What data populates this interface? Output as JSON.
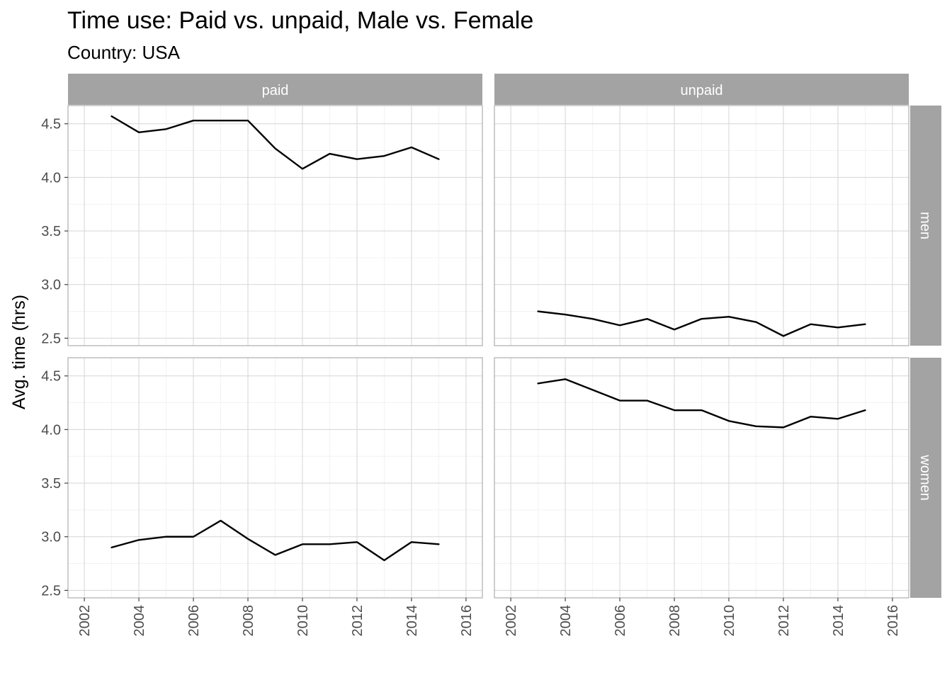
{
  "chart_data": {
    "type": "line",
    "title": "Time use: Paid vs. unpaid, Male vs. Female",
    "subtitle": "Country: USA",
    "xlabel": "",
    "ylabel": "Avg. time (hrs)",
    "xlim": [
      2001.4,
      2016.6
    ],
    "ylim": [
      2.43,
      4.67
    ],
    "x_ticks": [
      2002,
      2004,
      2006,
      2008,
      2010,
      2012,
      2014,
      2016
    ],
    "x_tick_labels": [
      "2002",
      "2004",
      "2006",
      "2008",
      "2010",
      "2012",
      "2014",
      "2016"
    ],
    "y_ticks": [
      2.5,
      3.0,
      3.5,
      4.0,
      4.5
    ],
    "y_tick_labels": [
      "2.5",
      "3.0",
      "3.5",
      "4.0",
      "4.5"
    ],
    "grid": true,
    "facet_columns": [
      "paid",
      "unpaid"
    ],
    "facet_rows": [
      "men",
      "women"
    ],
    "x": [
      2003,
      2004,
      2005,
      2006,
      2007,
      2008,
      2009,
      2010,
      2011,
      2012,
      2013,
      2014,
      2015
    ],
    "panels": [
      {
        "col": "paid",
        "row": "men",
        "values": [
          4.57,
          4.42,
          4.45,
          4.53,
          4.53,
          4.53,
          4.27,
          4.08,
          4.22,
          4.17,
          4.2,
          4.28,
          4.17
        ]
      },
      {
        "col": "unpaid",
        "row": "men",
        "values": [
          2.75,
          2.72,
          2.68,
          2.62,
          2.68,
          2.58,
          2.68,
          2.7,
          2.65,
          2.52,
          2.63,
          2.6,
          2.63
        ]
      },
      {
        "col": "paid",
        "row": "women",
        "values": [
          2.9,
          2.97,
          3.0,
          3.0,
          3.15,
          2.98,
          2.83,
          2.93,
          2.93,
          2.95,
          2.78,
          2.95,
          2.93
        ]
      },
      {
        "col": "unpaid",
        "row": "women",
        "values": [
          4.43,
          4.47,
          4.37,
          4.27,
          4.27,
          4.18,
          4.18,
          4.08,
          4.03,
          4.02,
          4.12,
          4.1,
          4.18
        ]
      }
    ]
  }
}
